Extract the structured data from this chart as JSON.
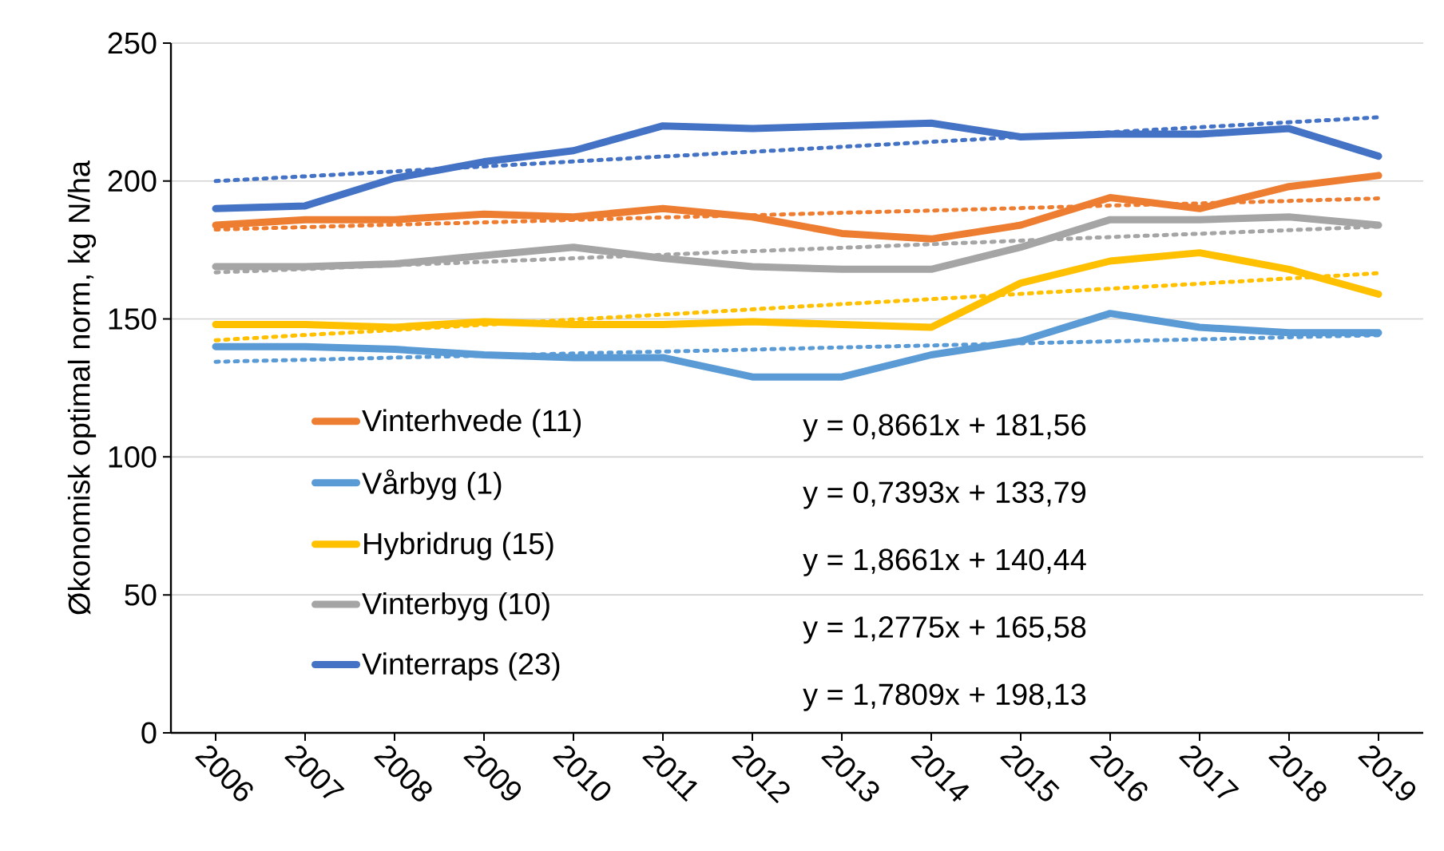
{
  "chart_data": {
    "type": "line",
    "ylabel": "Økonomisk optimal norm, kg N/ha",
    "categories": [
      "2006",
      "2007",
      "2008",
      "2009",
      "2010",
      "2011",
      "2012",
      "2013",
      "2014",
      "2015",
      "2016",
      "2017",
      "2018",
      "2019"
    ],
    "ylim": [
      0,
      250
    ],
    "yticks": [
      0,
      50,
      100,
      150,
      200,
      250
    ],
    "grid": "y",
    "legend": "bottom left",
    "marker": "none",
    "series": [
      {
        "name": "Vinterhvede (11)",
        "color": "#ed7d31",
        "line_style": "solid",
        "values": [
          184,
          186,
          186,
          188,
          187,
          190,
          187,
          181,
          179,
          184,
          194,
          190,
          198,
          202
        ]
      },
      {
        "name": "Vårbyg (1)",
        "color": "#5b9bd5",
        "line_style": "solid",
        "values": [
          140,
          140,
          139,
          137,
          136,
          136,
          129,
          129,
          137,
          142,
          152,
          147,
          145,
          145
        ]
      },
      {
        "name": "Hybridrug (15)",
        "color": "#ffc000",
        "line_style": "solid",
        "values": [
          148,
          148,
          147,
          149,
          148,
          148,
          149,
          148,
          147,
          163,
          171,
          174,
          168,
          159
        ]
      },
      {
        "name": "Vinterbyg (10)",
        "color": "#a5a5a5",
        "line_style": "solid",
        "values": [
          169,
          169,
          170,
          173,
          176,
          172,
          169,
          168,
          168,
          176,
          186,
          186,
          187,
          184
        ]
      },
      {
        "name": "Vinterraps (23)",
        "color": "#4472c4",
        "line_style": "solid",
        "values": [
          190,
          191,
          201,
          207,
          211,
          220,
          219,
          220,
          221,
          216,
          217,
          217,
          219,
          209
        ]
      },
      {
        "type": "line",
        "color": "#ed7d31",
        "line_style": "dotted",
        "values": [
          182.4,
          183.3,
          184.2,
          185.0,
          185.9,
          186.8,
          187.6,
          188.5,
          189.3,
          190.2,
          191.1,
          191.9,
          192.8,
          193.7
        ]
      },
      {
        "type": "line",
        "color": "#5b9bd5",
        "line_style": "dotted",
        "values": [
          134.5,
          135.2,
          136.0,
          136.7,
          137.5,
          138.2,
          138.9,
          139.7,
          140.4,
          141.2,
          141.9,
          142.6,
          143.4,
          144.1
        ]
      },
      {
        "type": "line",
        "color": "#ffc000",
        "line_style": "dotted",
        "values": [
          142.3,
          144.2,
          146.0,
          147.9,
          149.8,
          151.6,
          153.5,
          155.4,
          157.2,
          159.1,
          161.0,
          162.8,
          164.7,
          166.6
        ]
      },
      {
        "type": "line",
        "color": "#a5a5a5",
        "line_style": "dotted",
        "values": [
          166.9,
          168.1,
          169.5,
          170.7,
          172.0,
          173.3,
          174.6,
          175.8,
          177.1,
          178.4,
          179.7,
          180.9,
          182.2,
          183.5
        ]
      },
      {
        "type": "line",
        "color": "#4472c4",
        "line_style": "dotted",
        "values": [
          200.0,
          201.7,
          203.5,
          205.3,
          207.1,
          208.9,
          210.6,
          212.4,
          214.2,
          216.0,
          217.7,
          219.5,
          221.3,
          223.1
        ]
      }
    ],
    "annotations": [
      "y = 0,8661x + 181,56",
      "y = 0,7393x + 133,79",
      "y = 1,8661x + 140,44",
      "y = 1,2775x + 165,58",
      "y = 1,7809x + 198,13"
    ]
  }
}
